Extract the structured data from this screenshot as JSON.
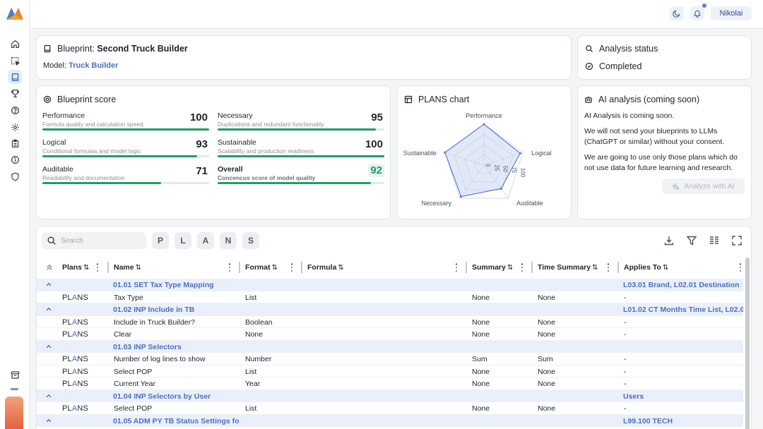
{
  "header": {
    "user_name": "Nikolai",
    "has_notification": true
  },
  "sidebar": {
    "items": [
      {
        "name": "home",
        "active": false
      },
      {
        "name": "selection",
        "active": false
      },
      {
        "name": "book",
        "active": true
      },
      {
        "name": "trophy",
        "active": false
      },
      {
        "name": "help",
        "active": false
      },
      {
        "name": "settings",
        "active": false
      },
      {
        "name": "clipboard",
        "active": false
      },
      {
        "name": "info",
        "active": false
      },
      {
        "name": "shield",
        "active": false
      }
    ],
    "bottom_icon": "archive"
  },
  "blueprint": {
    "title_prefix": "Blueprint:",
    "title_name": "Second Truck Builder",
    "model_label": "Model:",
    "model_name": "Truck Builder"
  },
  "analysis_status": {
    "title": "Analysis status",
    "status": "Completed"
  },
  "blueprint_score": {
    "title": "Blueprint score",
    "scores": [
      {
        "label": "Performance",
        "sub": "Formula quality and calculation speed",
        "value": 100
      },
      {
        "label": "Necessary",
        "sub": "Duplications and redundant functionality",
        "value": 95
      },
      {
        "label": "Logical",
        "sub": "Conditional formulas and model logic",
        "value": 93
      },
      {
        "label": "Sustainable",
        "sub": "Scalability and production readiness",
        "value": 100
      },
      {
        "label": "Auditable",
        "sub": "Readability and documentation",
        "value": 71
      },
      {
        "label": "Overall",
        "sub": "Concencus score of model quality",
        "value": 92
      }
    ],
    "bar_accent": "#1f9d63"
  },
  "plans_chart": {
    "title": "PLANS chart"
  },
  "chart_data": {
    "type": "radar",
    "categories": [
      "Performance",
      "Logical",
      "Auditable",
      "Necessary",
      "Sustainable"
    ],
    "values": [
      100,
      93,
      71,
      95,
      100
    ],
    "ticks": [
      "0",
      "25",
      "50",
      "75",
      "100"
    ],
    "range": [
      0,
      100
    ],
    "grid": true,
    "fill_color": "#c9d6f3",
    "line_color": "#5b7fd6"
  },
  "ai_analysis": {
    "title": "AI analysis (coming soon)",
    "p1": "AI Analysis is coming soon.",
    "p2": "We will not send your blueprints to LLMs (ChatGPT or similar) without your consent.",
    "p3": "We are going to use only those plans which do not use data for future learning and research.",
    "button": "Analyze with AI"
  },
  "table": {
    "search_placeholder": "Search",
    "plan_filters": [
      "P",
      "L",
      "A",
      "N",
      "S"
    ],
    "columns": {
      "plans": "Plans",
      "name": "Name",
      "format": "Format",
      "formula": "Formula",
      "summary": "Summary",
      "time_summary": "Time Summary",
      "applies_to": "Applies To"
    },
    "sort_glyph": "⇅",
    "rows": [
      {
        "type": "group",
        "name": "01.01 SET Tax Type Mapping",
        "applies": "L03.01 Brand, L02.01 Destination"
      },
      {
        "type": "item",
        "name": "Tax Type",
        "format": "List",
        "summary": "None",
        "time_summary": "None",
        "applies": "-"
      },
      {
        "type": "group",
        "name": "01.02 INP Include in TB",
        "applies": "L01.02 CT Months Time List, L02.0"
      },
      {
        "type": "item",
        "name": "Include in Truck Builder?",
        "format": "Boolean",
        "summary": "None",
        "time_summary": "None",
        "applies": "-"
      },
      {
        "type": "item",
        "name": "Clear",
        "format": "None",
        "summary": "None",
        "time_summary": "None",
        "applies": "-"
      },
      {
        "type": "group",
        "name": "01.03 INP Selectors",
        "applies": ""
      },
      {
        "type": "item",
        "name": "Number of log lines to show",
        "format": "Number",
        "summary": "Sum",
        "time_summary": "Sum",
        "applies": "-"
      },
      {
        "type": "item",
        "name": "Select POP",
        "format": "List",
        "summary": "None",
        "time_summary": "None",
        "applies": "-"
      },
      {
        "type": "item",
        "name": "Current Year",
        "format": "Year",
        "summary": "None",
        "time_summary": "None",
        "applies": "-"
      },
      {
        "type": "group",
        "name": "01.04 INP Selectors by User",
        "applies": "Users"
      },
      {
        "type": "item",
        "name": "Select POP",
        "format": "List",
        "summary": "None",
        "time_summary": "None",
        "applies": "-"
      },
      {
        "type": "group",
        "name": "01.05 ADM PY TB Status Settings fo",
        "applies": "L99.100 TECH"
      }
    ],
    "plans_badge": [
      "PL",
      "A",
      "NS"
    ]
  }
}
